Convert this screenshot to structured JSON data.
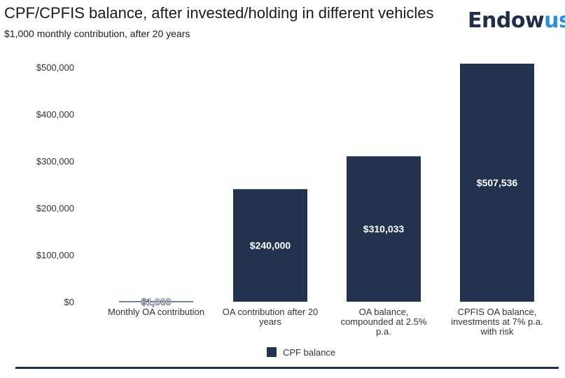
{
  "header": {
    "title": "CPF/CPFIS balance, after invested/holding in different vehicles",
    "subtitle": "$1,000 monthly contribution, after 20 years",
    "logo_part1": "Endow",
    "logo_part2": "us"
  },
  "colors": {
    "bar": "#22324f",
    "bar_label": "#ffffff",
    "axis_text": "#333333",
    "brand_navy": "#1f2e4d",
    "brand_blue": "#2f8fd6"
  },
  "chart_data": {
    "type": "bar",
    "categories": [
      [
        "Monthly OA contribution"
      ],
      [
        "OA contribution after 20",
        "years"
      ],
      [
        "OA balance,",
        "compounded at 2.5%",
        "p.a."
      ],
      [
        "CPFIS OA balance,",
        "investments at 7% p.a.",
        "with risk"
      ]
    ],
    "series": [
      {
        "name": "CPF balance",
        "values": [
          1000,
          240000,
          310033,
          507536
        ],
        "labels": [
          "$1,000",
          "$240,000",
          "$310,033",
          "$507,536"
        ]
      }
    ],
    "yticks": [
      "$0",
      "$100,000",
      "$200,000",
      "$300,000",
      "$400,000",
      "$500,000"
    ],
    "ytick_values": [
      0,
      100000,
      200000,
      300000,
      400000,
      500000
    ],
    "ylim": [
      0,
      500000
    ],
    "grid": false,
    "legend": "bottom-center"
  }
}
